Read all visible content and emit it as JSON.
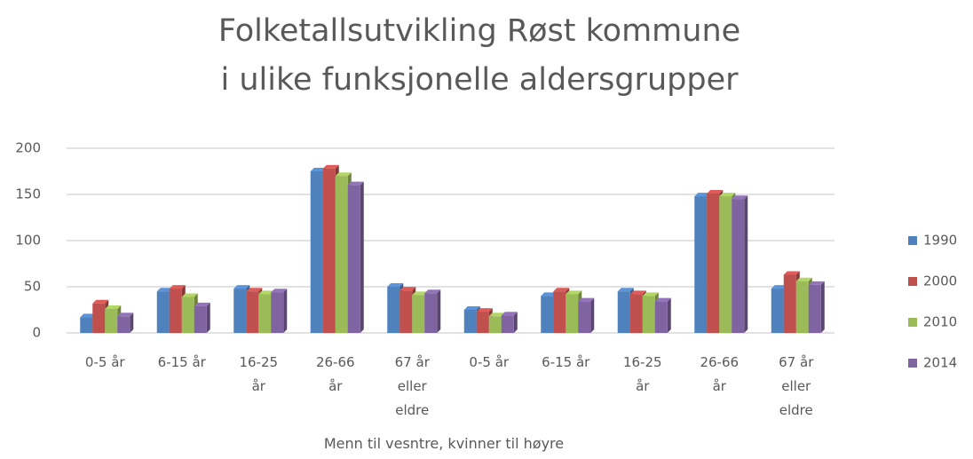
{
  "chart_data": {
    "type": "bar",
    "title": "Folketallsutvikling Røst kommune i ulike funksjonelle aldersgrupper",
    "xlabel": "Menn til vesntre, kvinner til høyre",
    "categories": [
      "0-5 år",
      "6-15 år",
      "16-25 år",
      "26-66 år",
      "67 år eller eldre",
      "0-5 år",
      "6-15 år",
      "16-25 år",
      "26-66 år",
      "67 år eller eldre"
    ],
    "series": [
      {
        "name": "1990",
        "color": "#4f81bd",
        "values": [
          17,
          45,
          48,
          175,
          50,
          25,
          40,
          45,
          148,
          48
        ]
      },
      {
        "name": "2000",
        "color": "#c0504d",
        "values": [
          32,
          48,
          45,
          178,
          46,
          23,
          45,
          42,
          151,
          63
        ]
      },
      {
        "name": "2010",
        "color": "#9bbb59",
        "values": [
          26,
          39,
          42,
          170,
          41,
          18,
          42,
          40,
          148,
          56
        ]
      },
      {
        "name": "2014",
        "color": "#8064a2",
        "values": [
          18,
          29,
          44,
          160,
          43,
          19,
          34,
          34,
          145,
          52
        ]
      }
    ],
    "ylim": [
      0,
      200
    ],
    "yticks": [
      0,
      50,
      100,
      150,
      200
    ],
    "grid": true,
    "legend": "right"
  }
}
